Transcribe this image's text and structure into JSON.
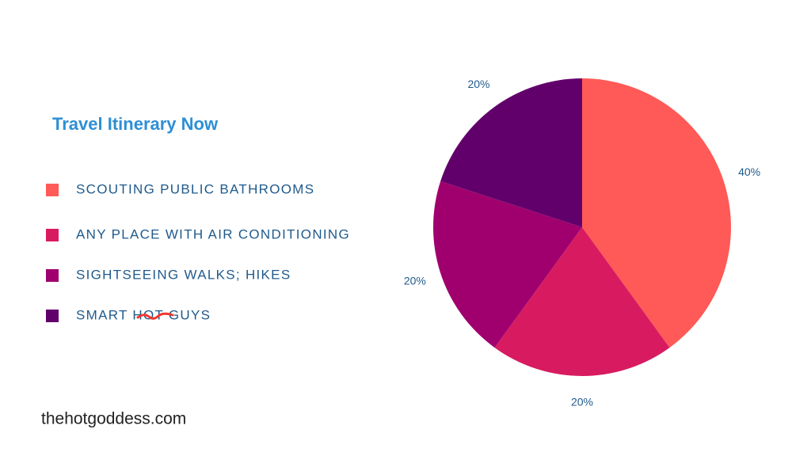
{
  "chart_data": {
    "type": "pie",
    "title": "Travel Itinerary Now",
    "categories": [
      "SCOUTING PUBLIC BATHROOMS",
      "ANY PLACE WITH AIR CONDITIONING",
      "SIGHTSEEING WALKS; HIKES",
      "SMART HOT GUYS"
    ],
    "values": [
      40,
      20,
      20,
      20
    ],
    "value_labels": [
      "40%",
      "20%",
      "20%",
      "20%"
    ],
    "colors": [
      "#ff5a57",
      "#d81b60",
      "#a0006e",
      "#62006b"
    ],
    "legend": "left"
  },
  "footer": "thehotgoddess.com"
}
